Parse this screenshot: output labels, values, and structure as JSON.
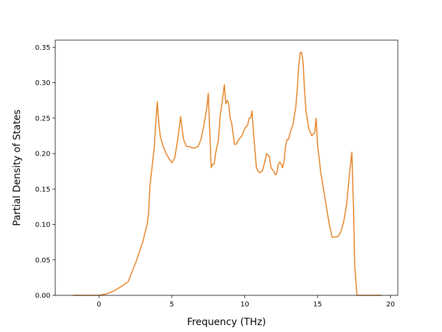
{
  "chart_data": {
    "type": "line",
    "title": "",
    "xlabel": "Frequency (THz)",
    "ylabel": "Partial Density of States",
    "xlim": [
      -3,
      20.5
    ],
    "ylim": [
      0,
      0.36
    ],
    "xticks": [
      0,
      5,
      10,
      15,
      20
    ],
    "xtick_labels": [
      "0",
      "5",
      "10",
      "15",
      "20"
    ],
    "yticks": [
      0,
      0.05,
      0.1,
      0.15,
      0.2,
      0.25,
      0.3,
      0.35
    ],
    "ytick_labels": [
      "0.00",
      "0.05",
      "0.10",
      "0.15",
      "0.20",
      "0.25",
      "0.30",
      "0.35"
    ],
    "grid": false,
    "series": [
      {
        "color": "#e6862a",
        "x": [
          -1.8,
          0.0,
          0.5,
          1.0,
          1.5,
          2.0,
          2.2,
          2.5,
          3.0,
          3.3,
          3.4,
          3.5,
          3.8,
          3.9,
          4.0,
          4.1,
          4.2,
          4.4,
          4.6,
          4.8,
          5.0,
          5.2,
          5.4,
          5.5,
          5.6,
          5.8,
          6.0,
          6.2,
          6.4,
          6.6,
          6.8,
          7.0,
          7.2,
          7.4,
          7.5,
          7.6,
          7.7,
          7.8,
          7.9,
          8.0,
          8.2,
          8.3,
          8.5,
          8.6,
          8.7,
          8.8,
          8.9,
          9.0,
          9.1,
          9.3,
          9.4,
          9.6,
          9.8,
          10.0,
          10.1,
          10.2,
          10.3,
          10.4,
          10.5,
          10.6,
          10.7,
          10.8,
          11.0,
          11.2,
          11.4,
          11.5,
          11.7,
          11.8,
          12.0,
          12.1,
          12.2,
          12.3,
          12.4,
          12.5,
          12.6,
          12.7,
          12.8,
          12.9,
          13.0,
          13.1,
          13.2,
          13.3,
          13.5,
          13.6,
          13.7,
          13.8,
          13.9,
          14.0,
          14.1,
          14.2,
          14.4,
          14.6,
          14.8,
          14.9,
          15.0,
          15.1,
          15.2,
          15.4,
          15.6,
          15.8,
          16.0,
          16.1,
          16.4,
          16.6,
          16.8,
          17.0,
          17.2,
          17.35,
          17.45,
          17.55,
          17.7,
          17.8,
          19.4
        ],
        "y": [
          0,
          0,
          0.002,
          0.006,
          0.012,
          0.019,
          0.03,
          0.045,
          0.075,
          0.1,
          0.115,
          0.155,
          0.21,
          0.245,
          0.273,
          0.245,
          0.225,
          0.21,
          0.2,
          0.193,
          0.187,
          0.194,
          0.22,
          0.235,
          0.252,
          0.22,
          0.21,
          0.21,
          0.208,
          0.208,
          0.21,
          0.22,
          0.24,
          0.265,
          0.285,
          0.23,
          0.18,
          0.185,
          0.185,
          0.2,
          0.22,
          0.25,
          0.28,
          0.297,
          0.27,
          0.275,
          0.27,
          0.25,
          0.243,
          0.213,
          0.213,
          0.22,
          0.225,
          0.235,
          0.238,
          0.24,
          0.25,
          0.25,
          0.26,
          0.23,
          0.205,
          0.18,
          0.173,
          0.175,
          0.19,
          0.2,
          0.195,
          0.18,
          0.175,
          0.17,
          0.172,
          0.185,
          0.188,
          0.185,
          0.18,
          0.19,
          0.21,
          0.22,
          0.22,
          0.228,
          0.235,
          0.24,
          0.265,
          0.29,
          0.322,
          0.342,
          0.343,
          0.33,
          0.29,
          0.26,
          0.235,
          0.225,
          0.23,
          0.25,
          0.21,
          0.195,
          0.175,
          0.15,
          0.125,
          0.1,
          0.082,
          0.082,
          0.083,
          0.09,
          0.105,
          0.13,
          0.175,
          0.202,
          0.13,
          0.04,
          0,
          0,
          0
        ]
      }
    ]
  }
}
